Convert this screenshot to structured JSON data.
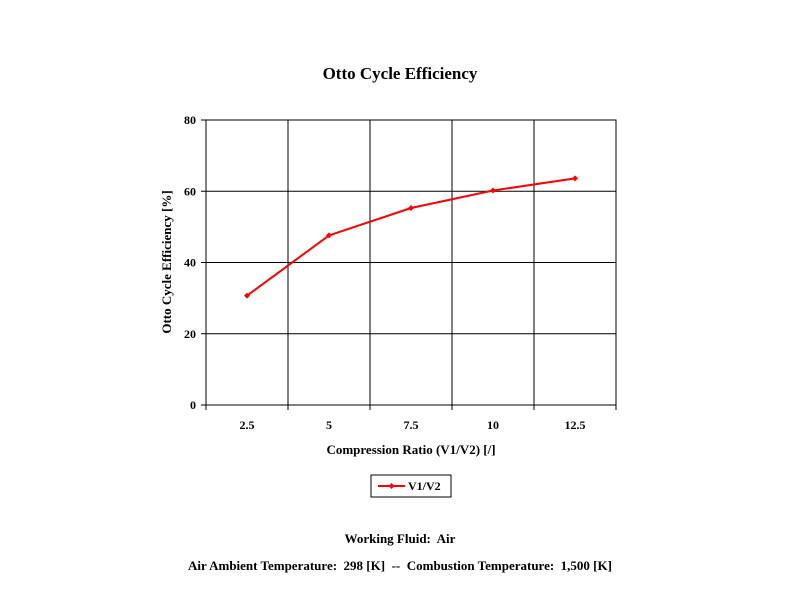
{
  "chart_data": {
    "type": "line",
    "title": "Otto Cycle Efficiency",
    "xlabel": "Compression Ratio (V1/V2) [/]",
    "ylabel": "Otto Cycle Efficiency [%]",
    "categories": [
      "2.5",
      "5",
      "7.5",
      "10",
      "12.5"
    ],
    "ylim": [
      0,
      80
    ],
    "yticks": [
      0,
      20,
      40,
      60,
      80
    ],
    "grid": true,
    "legend_position": "bottom",
    "series": [
      {
        "name": "V1/V2",
        "color": "#ff0000",
        "values": [
          30.7,
          47.6,
          55.3,
          60.2,
          63.6
        ]
      }
    ]
  },
  "footer": {
    "line1": "Working Fluid:  Air",
    "line2": "Air Ambient Temperature:  298 [K]  --  Combustion Temperature:  1,500 [K]"
  }
}
